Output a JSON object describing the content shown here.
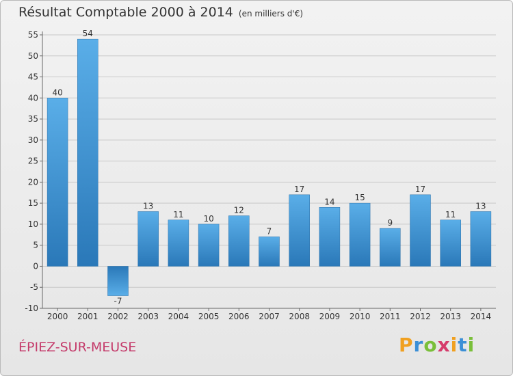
{
  "header": {
    "title": "Résultat Comptable 2000 à 2014",
    "subtitle": "(en milliers d'€)"
  },
  "footer": {
    "commune": "ÉPIEZ-SUR-MEUSE",
    "logo": {
      "text": "Proxiti",
      "letters": [
        "P",
        "r",
        "o",
        "x",
        "i",
        "t",
        "i"
      ],
      "colors": [
        "#f0a020",
        "#3b8fd6",
        "#7abf3a",
        "#d63b6b",
        "#f0a020",
        "#3b8fd6",
        "#7abf3a"
      ]
    }
  },
  "colors": {
    "bar_top": "#5aaee8",
    "bar_bottom": "#2a78b8",
    "grid": "#c8c8c8",
    "commune": "#c43a6a"
  },
  "chart_data": {
    "type": "bar",
    "title": "Résultat Comptable 2000 à 2014",
    "subtitle": "(en milliers d'€)",
    "categories": [
      "2000",
      "2001",
      "2002",
      "2003",
      "2004",
      "2005",
      "2006",
      "2007",
      "2008",
      "2009",
      "2010",
      "2011",
      "2012",
      "2013",
      "2014"
    ],
    "values": [
      40,
      54,
      -7,
      13,
      11,
      10,
      12,
      7,
      17,
      14,
      15,
      9,
      17,
      11,
      13
    ],
    "ylim": [
      -10,
      55
    ],
    "yticks": [
      -10,
      -5,
      0,
      5,
      10,
      15,
      20,
      25,
      30,
      35,
      40,
      45,
      50,
      55
    ],
    "grid": true,
    "data_labels": true
  }
}
